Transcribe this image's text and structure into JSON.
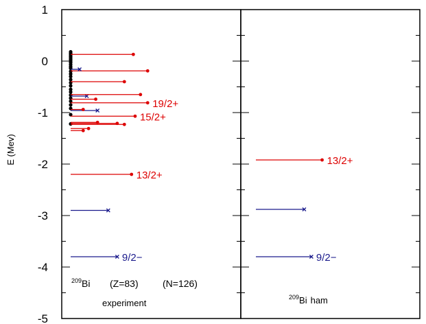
{
  "chart_data": {
    "type": "level-scheme",
    "ylabel": "E (Mev)",
    "ylim": [
      -5,
      1
    ],
    "yticks": [
      1,
      0,
      -1,
      -2,
      -3,
      -4,
      -5
    ],
    "colors": {
      "positive_parity": "#dd0000",
      "negative_parity": "#1a1a8c",
      "dense_level": "#000000",
      "frame": "#000000"
    },
    "panels": [
      {
        "name": "experiment",
        "info": {
          "nucleus_mass": "209",
          "nucleus_symbol": "Bi",
          "proton_text": "(Z=83)",
          "neutron_text": "(N=126)",
          "caption": "experiment"
        },
        "levels": [
          {
            "energy": -3.8,
            "length": 0.26,
            "color": "negative",
            "marker": "x",
            "label": "9/2−"
          },
          {
            "energy": -2.9,
            "length": 0.21,
            "color": "negative",
            "marker": "x",
            "label": ""
          },
          {
            "energy": -2.2,
            "length": 0.34,
            "color": "positive",
            "marker": "dot",
            "label": "13/2+"
          },
          {
            "energy": -1.35,
            "length": 0.07,
            "color": "positive",
            "marker": "dot",
            "label": ""
          },
          {
            "energy": -1.31,
            "length": 0.1,
            "color": "positive",
            "marker": "dot",
            "label": ""
          },
          {
            "energy": -1.23,
            "length": 0.3,
            "color": "positive",
            "marker": "dot",
            "label": ""
          },
          {
            "energy": -1.21,
            "length": 0.26,
            "color": "positive",
            "marker": "dot",
            "label": ""
          },
          {
            "energy": -1.19,
            "length": 0.15,
            "color": "positive",
            "marker": "dot",
            "label": ""
          },
          {
            "energy": -1.07,
            "length": 0.36,
            "color": "positive",
            "marker": "dot",
            "label": "15/2+"
          },
          {
            "energy": -0.96,
            "length": 0.15,
            "color": "negative",
            "marker": "x",
            "label": ""
          },
          {
            "energy": -0.94,
            "length": 0.07,
            "color": "positive",
            "marker": "dot",
            "label": ""
          },
          {
            "energy": -0.81,
            "length": 0.43,
            "color": "positive",
            "marker": "dot",
            "label": "19/2+"
          },
          {
            "energy": -0.74,
            "length": 0.14,
            "color": "positive",
            "marker": "dot",
            "label": ""
          },
          {
            "energy": -0.68,
            "length": 0.09,
            "color": "negative",
            "marker": "x",
            "label": ""
          },
          {
            "energy": -0.65,
            "length": 0.39,
            "color": "positive",
            "marker": "dot",
            "label": ""
          },
          {
            "energy": -0.4,
            "length": 0.3,
            "color": "positive",
            "marker": "dot",
            "label": ""
          },
          {
            "energy": -0.19,
            "length": 0.43,
            "color": "positive",
            "marker": "dot",
            "label": ""
          },
          {
            "energy": -0.16,
            "length": 0.05,
            "color": "negative",
            "marker": "x",
            "label": ""
          },
          {
            "energy": 0.13,
            "length": 0.35,
            "color": "positive",
            "marker": "dot",
            "label": ""
          }
        ],
        "dense_levels": [
          0.18,
          0.15,
          0.12,
          0.09,
          0.06,
          0.03,
          0.0,
          -0.03,
          -0.07,
          -0.11,
          -0.14,
          -0.2,
          -0.25,
          -0.3,
          -0.36,
          -0.42,
          -0.48,
          -0.55,
          -0.6,
          -0.66,
          -0.72,
          -0.78,
          -0.85,
          -0.92,
          -1.04,
          -1.22
        ]
      },
      {
        "name": "ham",
        "info": {
          "nucleus_mass": "209",
          "nucleus_symbol": "Bi",
          "caption": "ham"
        },
        "levels": [
          {
            "energy": -3.8,
            "length": 0.31,
            "color": "negative",
            "marker": "x",
            "label": "9/2−"
          },
          {
            "energy": -2.88,
            "length": 0.27,
            "color": "negative",
            "marker": "x",
            "label": ""
          },
          {
            "energy": -1.92,
            "length": 0.37,
            "color": "positive",
            "marker": "dot",
            "label": "13/2+"
          }
        ],
        "dense_levels": []
      }
    ]
  }
}
